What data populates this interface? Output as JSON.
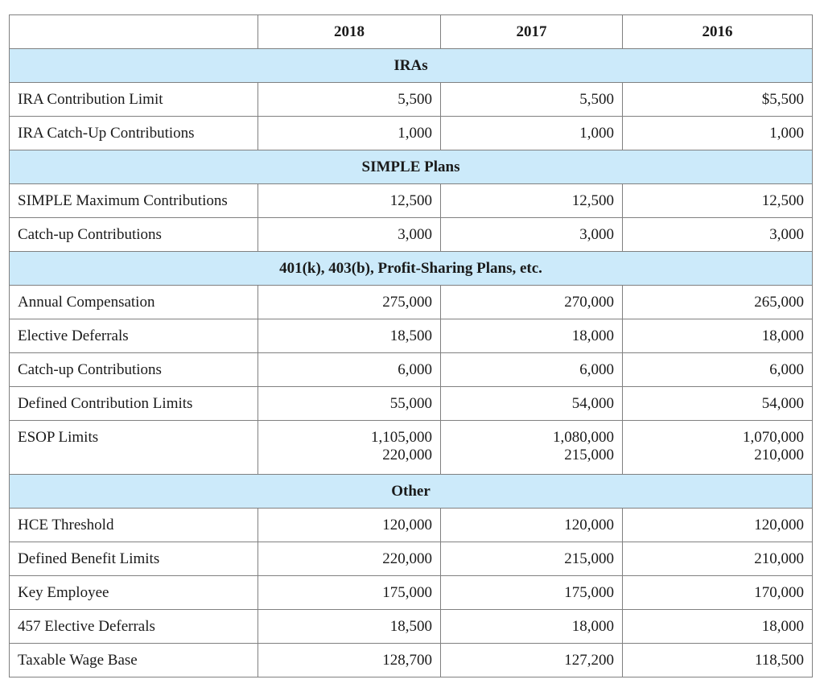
{
  "header": {
    "years": [
      "2018",
      "2017",
      "2016"
    ]
  },
  "sections": [
    {
      "title": "IRAs",
      "rows": [
        {
          "label": "IRA Contribution Limit",
          "values": [
            "5,500",
            "5,500",
            "$5,500"
          ]
        },
        {
          "label": "IRA Catch-Up Contributions",
          "values": [
            "1,000",
            "1,000",
            "1,000"
          ]
        }
      ]
    },
    {
      "title": "SIMPLE Plans",
      "rows": [
        {
          "label": "SIMPLE Maximum Contributions",
          "values": [
            "12,500",
            "12,500",
            "12,500"
          ]
        },
        {
          "label": "Catch-up Contributions",
          "values": [
            "3,000",
            "3,000",
            "3,000"
          ]
        }
      ]
    },
    {
      "title": "401(k), 403(b), Profit-Sharing Plans, etc.",
      "rows": [
        {
          "label": "Annual Compensation",
          "values": [
            "275,000",
            "270,000",
            "265,000"
          ]
        },
        {
          "label": "Elective Deferrals",
          "values": [
            "18,500",
            "18,000",
            "18,000"
          ]
        },
        {
          "label": "Catch-up Contributions",
          "values": [
            "6,000",
            "6,000",
            "6,000"
          ]
        },
        {
          "label": "Defined Contribution Limits",
          "values": [
            "55,000",
            "54,000",
            "54,000"
          ]
        },
        {
          "label": "ESOP Limits",
          "values": [
            "1,105,000",
            "1,080,000",
            "1,070,000"
          ],
          "values2": [
            "220,000",
            "215,000",
            "210,000"
          ]
        }
      ]
    },
    {
      "title": "Other",
      "rows": [
        {
          "label": "HCE Threshold",
          "values": [
            "120,000",
            "120,000",
            "120,000"
          ]
        },
        {
          "label": "Defined Benefit Limits",
          "values": [
            "220,000",
            "215,000",
            "210,000"
          ]
        },
        {
          "label": "Key Employee",
          "values": [
            "175,000",
            "175,000",
            "170,000"
          ]
        },
        {
          "label": "457 Elective Deferrals",
          "values": [
            "18,500",
            "18,000",
            "18,000"
          ]
        },
        {
          "label": "Taxable Wage Base",
          "values": [
            "128,700",
            "127,200",
            "118,500"
          ]
        }
      ]
    }
  ]
}
